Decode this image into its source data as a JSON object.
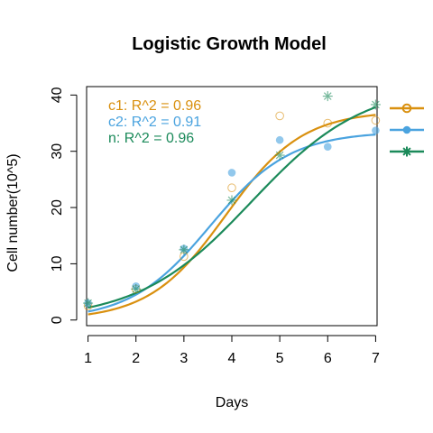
{
  "chart_data": {
    "type": "scatter",
    "title": "Logistic Growth Model",
    "xlabel": "Days",
    "ylabel": "Cell number(10^5)",
    "xlim": [
      0.97,
      7.03
    ],
    "ylim": [
      -1.0,
      41.5
    ],
    "x_ticks": [
      1,
      2,
      3,
      4,
      5,
      6,
      7
    ],
    "y_ticks": [
      0,
      10,
      20,
      30,
      40
    ],
    "grid": false,
    "legend_position": "right (outside plot)",
    "series": [
      {
        "key": "c1",
        "color": "#D9900F",
        "marker": "open-circle",
        "x": [
          1,
          2,
          3,
          4,
          5,
          6,
          7
        ],
        "y": [
          2.5,
          5.5,
          11.3,
          23.5,
          36.3,
          35.0,
          35.5
        ],
        "fit": {
          "K": 37.2,
          "N0": 1.0,
          "r": 1.25
        }
      },
      {
        "key": "c2",
        "color": "#4AA3DF",
        "marker": "filled-circle",
        "x": [
          1,
          2,
          3,
          4,
          5,
          6,
          7
        ],
        "y": [
          3.0,
          6.0,
          12.7,
          26.2,
          32.0,
          30.8,
          33.7
        ],
        "fit": {
          "K": 33.5,
          "N0": 1.5,
          "r": 1.2
        }
      },
      {
        "key": "n",
        "color": "#1B8A5A",
        "marker": "asterisk",
        "x": [
          1,
          2,
          3,
          4,
          5,
          6,
          7
        ],
        "y": [
          3.0,
          5.5,
          12.5,
          21.3,
          29.3,
          39.8,
          38.3
        ],
        "fit": {
          "K": 42.0,
          "N0": 2.2,
          "r": 0.85
        }
      }
    ],
    "annotations": [
      {
        "text": "c1: R^2 = 0.96",
        "color": "#D9900F"
      },
      {
        "text": "c2: R^2 = 0.91",
        "color": "#4AA3DF"
      },
      {
        "text": "n: R^2 = 0.96",
        "color": "#1B8A5A"
      }
    ]
  }
}
